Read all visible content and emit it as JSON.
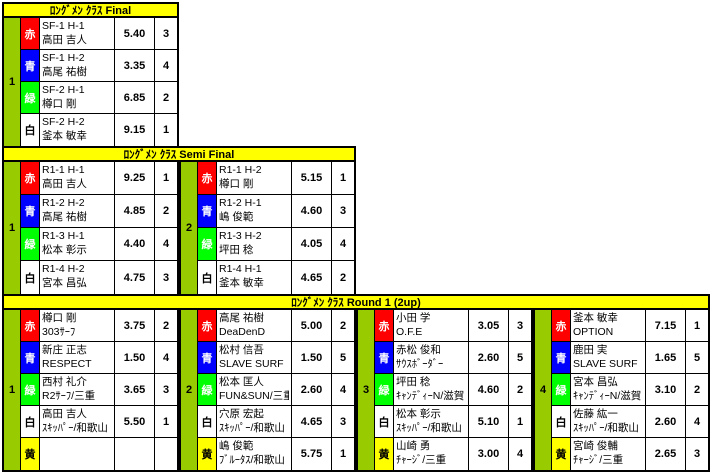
{
  "colors": {
    "red": "#ff0000",
    "blue": "#0000ff",
    "green": "#00ff00",
    "white": "#ffffff",
    "yellow": "#ffff00",
    "group_column": "#99cc00",
    "header_bg": "#ffff00",
    "border": "#000000"
  },
  "color_labels": {
    "red": "赤",
    "blue": "青",
    "green": "緑",
    "white": "白",
    "yellow": "黄"
  },
  "sections": [
    {
      "title": "ﾛﾝｸﾞﾒﾝ ｸﾗｽ Final",
      "groups": [
        {
          "number": "1",
          "rows": [
            {
              "color": "red",
              "line1": "SF-1 H-1",
              "line2": "高田 吉人",
              "score": "5.40",
              "rank": "3"
            },
            {
              "color": "blue",
              "line1": "SF-1 H-2",
              "line2": "高尾 祐樹",
              "score": "3.35",
              "rank": "4"
            },
            {
              "color": "green",
              "line1": "SF-2 H-1",
              "line2": "樽口 剛",
              "score": "6.85",
              "rank": "2"
            },
            {
              "color": "white",
              "line1": "SF-2 H-2",
              "line2": "釜本 敏幸",
              "score": "9.15",
              "rank": "1"
            }
          ]
        }
      ]
    },
    {
      "title": "ﾛﾝｸﾞﾒﾝ ｸﾗｽ Semi Final",
      "groups": [
        {
          "number": "1",
          "rows": [
            {
              "color": "red",
              "line1": "R1-1 H-1",
              "line2": "高田 吉人",
              "score": "9.25",
              "rank": "1"
            },
            {
              "color": "blue",
              "line1": "R1-2 H-2",
              "line2": "高尾 祐樹",
              "score": "4.85",
              "rank": "2"
            },
            {
              "color": "green",
              "line1": "R1-3 H-1",
              "line2": "松本 彰示",
              "score": "4.40",
              "rank": "4"
            },
            {
              "color": "white",
              "line1": "R1-4 H-2",
              "line2": "宮本 昌弘",
              "score": "4.75",
              "rank": "3"
            }
          ]
        },
        {
          "number": "2",
          "rows": [
            {
              "color": "red",
              "line1": "R1-1 H-2",
              "line2": "樽口 剛",
              "score": "5.15",
              "rank": "1"
            },
            {
              "color": "blue",
              "line1": "R1-2 H-1",
              "line2": "嶋 俊範",
              "score": "4.60",
              "rank": "3"
            },
            {
              "color": "green",
              "line1": "R1-3 H-2",
              "line2": "坪田 稔",
              "score": "4.05",
              "rank": "4"
            },
            {
              "color": "white",
              "line1": "R1-4 H-1",
              "line2": "釜本 敏幸",
              "score": "4.65",
              "rank": "2"
            }
          ]
        }
      ]
    },
    {
      "title": "ﾛﾝｸﾞﾒﾝ ｸﾗｽ Round 1 (2up)",
      "groups": [
        {
          "number": "1",
          "rows": [
            {
              "color": "red",
              "line1": "樽口 剛",
              "line2": "303ｻｰﾌ",
              "score": "3.75",
              "rank": "2"
            },
            {
              "color": "blue",
              "line1": "新庄 正志",
              "line2": "RESPECT",
              "score": "1.50",
              "rank": "4"
            },
            {
              "color": "green",
              "line1": "西村 礼介",
              "line2": "R2ｻｰﾌ/三重",
              "score": "3.65",
              "rank": "3"
            },
            {
              "color": "white",
              "line1": "高田 吉人",
              "line2": "ｽｷｯﾊﾟｰ/和歌山",
              "score": "5.50",
              "rank": "1"
            },
            {
              "color": "yellow",
              "line1": "",
              "line2": "",
              "score": "",
              "rank": ""
            }
          ]
        },
        {
          "number": "2",
          "rows": [
            {
              "color": "red",
              "line1": "高尾 祐樹",
              "line2": "DeaDenD",
              "score": "5.00",
              "rank": "2"
            },
            {
              "color": "blue",
              "line1": "松村 信吾",
              "line2": "SLAVE SURF",
              "score": "1.50",
              "rank": "5"
            },
            {
              "color": "green",
              "line1": "松本 匡人",
              "line2": "FUN&SUN/三重",
              "score": "2.60",
              "rank": "4"
            },
            {
              "color": "white",
              "line1": "穴原 宏起",
              "line2": "ｽｷｯﾊﾟｰ/和歌山",
              "score": "4.65",
              "rank": "3"
            },
            {
              "color": "yellow",
              "line1": "嶋 俊範",
              "line2": "ﾌﾞﾙｰﾀｽ/和歌山",
              "score": "5.75",
              "rank": "1"
            }
          ]
        },
        {
          "number": "3",
          "rows": [
            {
              "color": "red",
              "line1": "小田 学",
              "line2": "O.F.E",
              "score": "3.05",
              "rank": "3"
            },
            {
              "color": "blue",
              "line1": "赤松 俊和",
              "line2": "ｻｳｽﾎﾞｰﾀﾞｰ",
              "score": "2.60",
              "rank": "5"
            },
            {
              "color": "green",
              "line1": "坪田 稔",
              "line2": "ｷｬﾝﾃﾞｨｰN/滋賀",
              "score": "4.60",
              "rank": "2"
            },
            {
              "color": "white",
              "line1": "松本 彰示",
              "line2": "ｽｷｯﾊﾟｰ/和歌山",
              "score": "5.10",
              "rank": "1"
            },
            {
              "color": "yellow",
              "line1": "山崎 勇",
              "line2": "ﾁｬｰｼﾞ/三重",
              "score": "3.00",
              "rank": "4"
            }
          ]
        },
        {
          "number": "4",
          "rows": [
            {
              "color": "red",
              "line1": "釜本 敏幸",
              "line2": "OPTION",
              "score": "7.15",
              "rank": "1"
            },
            {
              "color": "blue",
              "line1": "鹿田 実",
              "line2": "SLAVE SURF",
              "score": "1.65",
              "rank": "5"
            },
            {
              "color": "green",
              "line1": "宮本 昌弘",
              "line2": "ｷｬﾝﾃﾞｨｰN/滋賀",
              "score": "3.10",
              "rank": "2"
            },
            {
              "color": "white",
              "line1": "佐藤 紘一",
              "line2": "ｽｷｯﾊﾟｰ/和歌山",
              "score": "2.60",
              "rank": "4"
            },
            {
              "color": "yellow",
              "line1": "宮崎 俊輔",
              "line2": "ﾁｬｰｼﾞ/三重",
              "score": "2.65",
              "rank": "3"
            }
          ]
        }
      ]
    }
  ]
}
